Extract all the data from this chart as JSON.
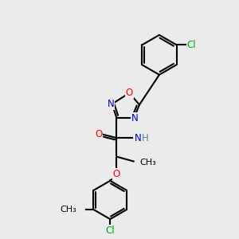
{
  "bg_color": "#ebebeb",
  "bond_color": "#000000",
  "bond_width": 1.5,
  "atom_colors": {
    "C": "#000000",
    "N": "#0000cc",
    "O": "#ff0000",
    "Cl": "#00aa00",
    "H": "#4a8a8a",
    "default": "#000000"
  },
  "font_size": 8.5,
  "fig_size": [
    3.0,
    3.0
  ],
  "dpi": 100
}
